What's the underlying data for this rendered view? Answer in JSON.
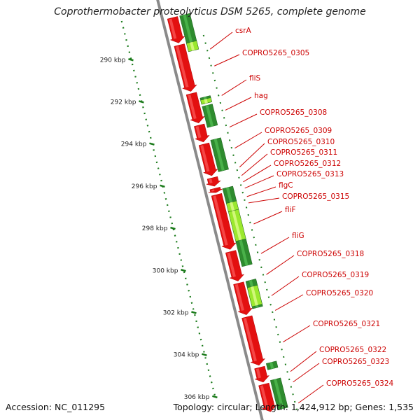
{
  "title": "Coprothermobacter proteolyticus DSM 5265, complete genome",
  "footer": {
    "accession_label": "Accession: NC_011295",
    "summary_label": "Topology: circular; Length: 1,424,912 bp; Genes: 1,535"
  },
  "colors": {
    "forward_gene": "#e31010",
    "reverse_gene": "#2e8b2e",
    "reverse_gene_light": "#9be82e",
    "backbone": "#8a8a8a",
    "ruler": "#1a7a1a",
    "label": "#cc0000"
  },
  "ruler_ticks": [
    {
      "kbp": 290,
      "label": "290 kbp"
    },
    {
      "kbp": 292,
      "label": "292 kbp"
    },
    {
      "kbp": 294,
      "label": "294 kbp"
    },
    {
      "kbp": 296,
      "label": "296 kbp"
    },
    {
      "kbp": 298,
      "label": "298 kbp"
    },
    {
      "kbp": 300,
      "label": "300 kbp"
    },
    {
      "kbp": 302,
      "label": "302 kbp"
    },
    {
      "kbp": 304,
      "label": "304 kbp"
    },
    {
      "kbp": 306,
      "label": "306 kbp"
    }
  ],
  "gene_labels": [
    {
      "name": "csrA",
      "kbp": 289.3
    },
    {
      "name": "COPRO5265_0305",
      "kbp": 290.1
    },
    {
      "name": "fliS",
      "kbp": 291.5
    },
    {
      "name": "hag",
      "kbp": 292.2
    },
    {
      "name": "COPRO5265_0308",
      "kbp": 293.0
    },
    {
      "name": "COPRO5265_0309",
      "kbp": 294.0
    },
    {
      "name": "COPRO5265_0310",
      "kbp": 294.9
    },
    {
      "name": "COPRO5265_0311",
      "kbp": 295.3
    },
    {
      "name": "COPRO5265_0312",
      "kbp": 295.6
    },
    {
      "name": "COPRO5265_0313",
      "kbp": 295.9
    },
    {
      "name": "flgC",
      "kbp": 296.3
    },
    {
      "name": "COPRO5265_0315",
      "kbp": 296.6
    },
    {
      "name": "fliF",
      "kbp": 297.6
    },
    {
      "name": "fliG",
      "kbp": 299.0
    },
    {
      "name": "COPRO5265_0318",
      "kbp": 300.0
    },
    {
      "name": "COPRO5265_0319",
      "kbp": 301.0
    },
    {
      "name": "COPRO5265_0320",
      "kbp": 301.7
    },
    {
      "name": "COPRO5265_0321",
      "kbp": 303.2
    },
    {
      "name": "COPRO5265_0322",
      "kbp": 304.6
    },
    {
      "name": "COPRO5265_0323",
      "kbp": 305.1
    },
    {
      "name": "COPRO5265_0324",
      "kbp": 306.1
    }
  ],
  "forward_genes": [
    {
      "start": 288.1,
      "end": 289.3
    },
    {
      "start": 289.4,
      "end": 291.6
    },
    {
      "start": 291.7,
      "end": 293.1
    },
    {
      "start": 293.2,
      "end": 294.0
    },
    {
      "start": 294.1,
      "end": 295.6
    },
    {
      "start": 295.7,
      "end": 296.1
    },
    {
      "start": 296.2,
      "end": 296.4
    },
    {
      "start": 296.5,
      "end": 299.1
    },
    {
      "start": 299.2,
      "end": 300.6
    },
    {
      "start": 300.7,
      "end": 302.2
    },
    {
      "start": 302.3,
      "end": 304.6
    },
    {
      "start": 304.7,
      "end": 305.4
    },
    {
      "start": 305.5,
      "end": 306.8
    }
  ],
  "reverse_genes": [
    {
      "start": 288.1,
      "end": 289.7,
      "shade": "dark"
    },
    {
      "start": 289.4,
      "end": 289.8,
      "shade": "light"
    },
    {
      "start": 292.0,
      "end": 292.3,
      "shade": "dark"
    },
    {
      "start": 292.1,
      "end": 292.3,
      "shade": "light"
    },
    {
      "start": 292.4,
      "end": 293.4,
      "shade": "dark"
    },
    {
      "start": 294.0,
      "end": 295.5,
      "shade": "dark"
    },
    {
      "start": 296.3,
      "end": 297.0,
      "shade": "dark"
    },
    {
      "start": 297.0,
      "end": 297.4,
      "shade": "light"
    },
    {
      "start": 297.4,
      "end": 298.8,
      "shade": "light"
    },
    {
      "start": 298.8,
      "end": 300.0,
      "shade": "dark"
    },
    {
      "start": 300.7,
      "end": 302.0,
      "shade": "dark"
    },
    {
      "start": 301.0,
      "end": 301.9,
      "shade": "light"
    },
    {
      "start": 304.6,
      "end": 304.9,
      "shade": "dark"
    },
    {
      "start": 305.4,
      "end": 306.8,
      "shade": "dark"
    }
  ]
}
